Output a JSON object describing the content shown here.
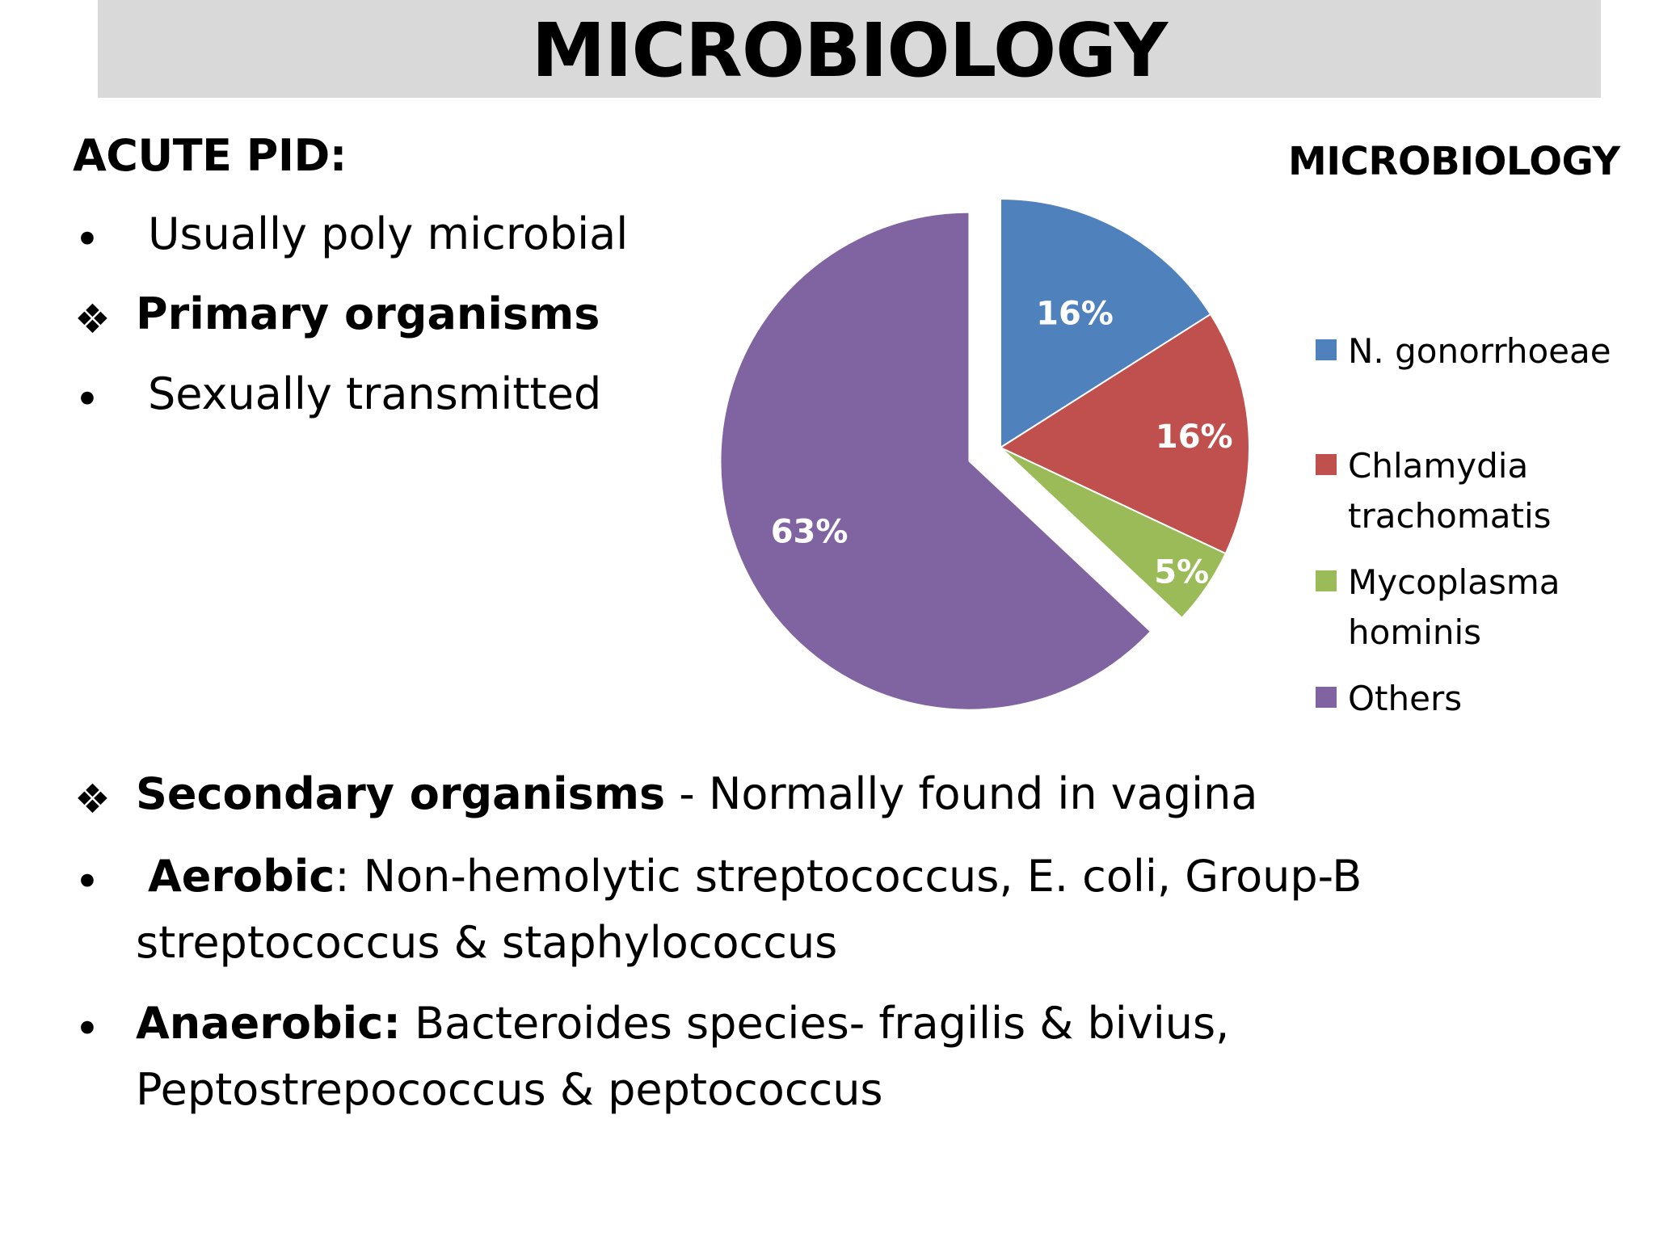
{
  "slide": {
    "title": "MICROBIOLOGY",
    "acute_heading": "ACUTE PID:",
    "bullet_symbol": "•",
    "diamond_symbol": "❖",
    "line1": "Usually poly microbial",
    "primary_heading": "Primary organisms",
    "line2": "Sexually transmitted",
    "secondary_heading": "Secondary organisms",
    "secondary_rest": " - Normally found in vagina",
    "aerobic_label": "Aerobic",
    "aerobic_rest_line1": ": Non-hemolytic streptococcus, E. coli, Group-B",
    "aerobic_line2": "streptococcus & staphylococcus",
    "anaerobic_label": "Anaerobic:",
    "anaerobic_rest_line1": " Bacteroides species- fragilis & bivius,",
    "anaerobic_line2": "Peptostrepococcus & peptococcus"
  },
  "chart_data": {
    "type": "pie",
    "title": "MICROBIOLOGY",
    "legend_position": "right",
    "start_angle_deg": 0,
    "direction": "clockwise",
    "exploded_slice": "Others",
    "slices": [
      {
        "name": "N. gonorrhoeae",
        "value": 16,
        "label": "16%",
        "color": "#4f81bd"
      },
      {
        "name": "Chlamydia trachomatis",
        "value": 16,
        "label": "16%",
        "color": "#c0504d"
      },
      {
        "name": "Mycoplasma hominis",
        "value": 5,
        "label": "5%",
        "color": "#9bbb59"
      },
      {
        "name": "Others",
        "value": 63,
        "label": "63%",
        "color": "#8064a2"
      }
    ]
  }
}
